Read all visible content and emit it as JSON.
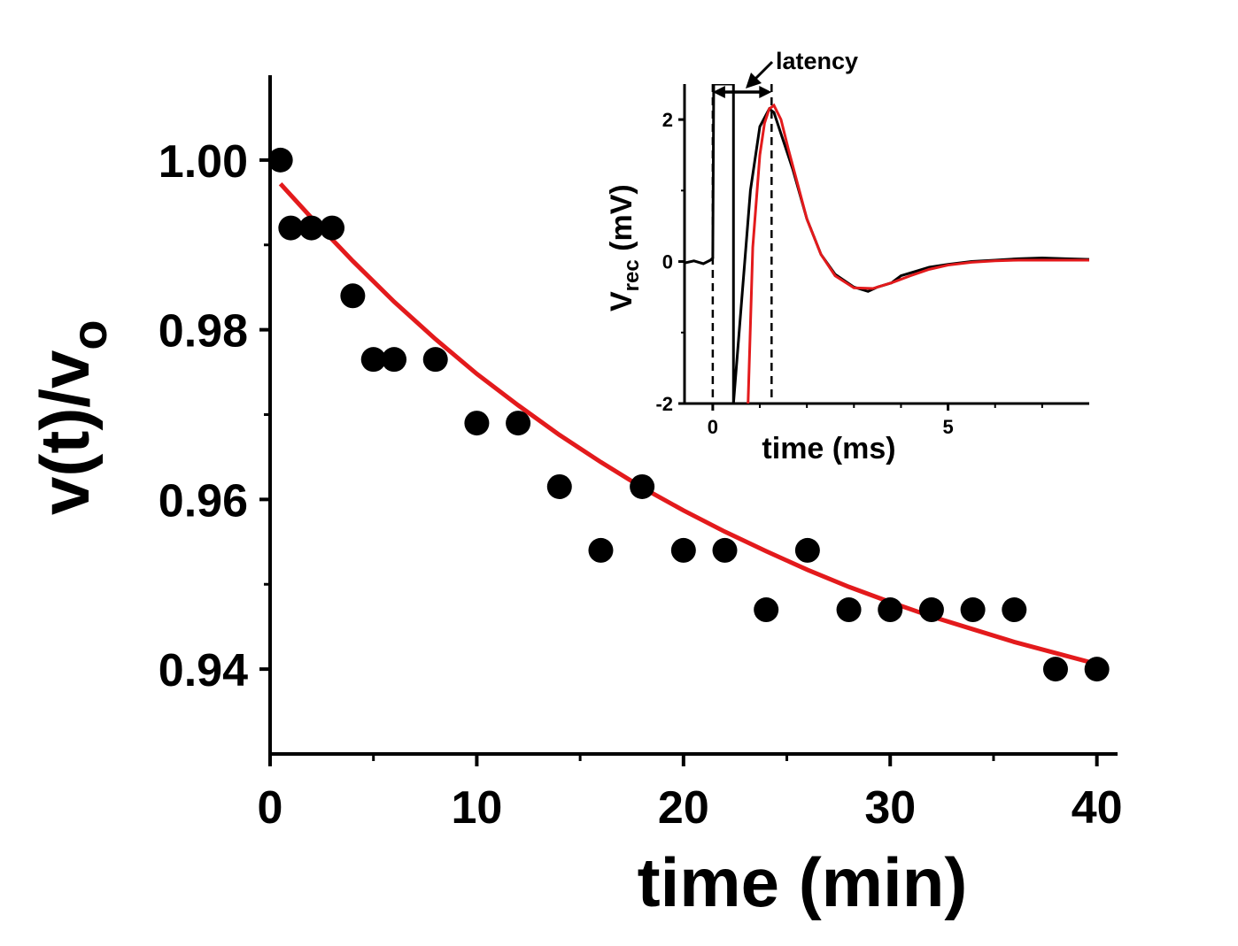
{
  "chart_data": [
    {
      "type": "scatter",
      "xlabel": "time (min)",
      "ylabel": "v(t)/v",
      "ylabel_subscript": "o",
      "xlim": [
        0,
        41
      ],
      "ylim": [
        0.93,
        1.01
      ],
      "xticks": [
        0,
        10,
        20,
        30,
        40
      ],
      "xtick_labels": [
        "0",
        "10",
        "20",
        "30",
        "40"
      ],
      "xminor": [
        5,
        15,
        25,
        35
      ],
      "yticks": [
        0.94,
        0.96,
        0.98,
        1.0
      ],
      "ytick_labels": [
        "0.94",
        "0.96",
        "0.98",
        "1.00"
      ],
      "yminor": [
        0.95,
        0.97,
        0.99
      ],
      "series": [
        {
          "name": "data",
          "color": "#000000",
          "x": [
            0.5,
            1,
            2,
            3,
            4,
            5,
            6,
            8,
            10,
            12,
            14,
            16,
            18,
            20,
            22,
            24,
            26,
            28,
            30,
            32,
            34,
            36,
            38,
            40
          ],
          "y": [
            1.0,
            0.992,
            0.992,
            0.992,
            0.984,
            0.9765,
            0.9765,
            0.9765,
            0.969,
            0.969,
            0.9615,
            0.954,
            0.9615,
            0.954,
            0.954,
            0.947,
            0.954,
            0.947,
            0.947,
            0.947,
            0.947,
            0.947,
            0.94,
            0.94
          ]
        },
        {
          "name": "fit",
          "type": "line",
          "color": "#e31a1c",
          "x": [
            0.5,
            2,
            4,
            6,
            8,
            10,
            12,
            14,
            16,
            18,
            20,
            22,
            24,
            26,
            28,
            30,
            32,
            34,
            36,
            38,
            40
          ],
          "y": [
            0.9972,
            0.9932,
            0.9881,
            0.9833,
            0.9789,
            0.9748,
            0.9711,
            0.9676,
            0.9644,
            0.9614,
            0.9587,
            0.9562,
            0.9539,
            0.9517,
            0.9497,
            0.9479,
            0.9462,
            0.9447,
            0.9432,
            0.9419,
            0.9406
          ]
        }
      ]
    },
    {
      "type": "line",
      "xlabel": "time (ms)",
      "ylabel": "V",
      "ylabel_subscript": "rec",
      "ylabel_suffix": " (mV)",
      "xlim": [
        -0.6,
        8
      ],
      "ylim": [
        -2,
        2.5
      ],
      "xticks": [
        0,
        5
      ],
      "xtick_labels": [
        "0",
        "5"
      ],
      "xminor": [
        1,
        2,
        3,
        4,
        6,
        7
      ],
      "yticks": [
        -2,
        0,
        2
      ],
      "ytick_labels": [
        "-2",
        "0",
        "2"
      ],
      "yminor": [
        -1,
        1
      ],
      "annotation": "latency",
      "markers": [
        0,
        1.25
      ],
      "series": [
        {
          "name": "recorded",
          "color": "#000000",
          "x": [
            -0.6,
            -0.4,
            -0.2,
            -0.05,
            0.0,
            0.02,
            0.3,
            0.32,
            0.38,
            0.44,
            0.44,
            0.8,
            1.0,
            1.2,
            1.3,
            1.5,
            1.7,
            2.0,
            2.3,
            2.6,
            3.0,
            3.3,
            3.5,
            3.8,
            4.0,
            4.3,
            4.6,
            5.0,
            5.5,
            6.0,
            6.5,
            7.0,
            7.5,
            8.0
          ],
          "y": [
            -0.02,
            0.01,
            -0.03,
            0.02,
            0.05,
            2.5,
            2.5,
            2.5,
            2.5,
            2.5,
            -2.0,
            1.0,
            1.9,
            2.15,
            2.1,
            1.7,
            1.3,
            0.6,
            0.1,
            -0.18,
            -0.36,
            -0.42,
            -0.36,
            -0.3,
            -0.2,
            -0.14,
            -0.08,
            -0.04,
            0.0,
            0.02,
            0.04,
            0.05,
            0.04,
            0.03
          ]
        },
        {
          "name": "fit",
          "color": "#e31a1c",
          "x": [
            0.75,
            0.85,
            1.0,
            1.1,
            1.2,
            1.3,
            1.45,
            1.6,
            1.8,
            2.0,
            2.3,
            2.6,
            3.0,
            3.4,
            3.8,
            4.2,
            4.6,
            5.0,
            5.5,
            6.0,
            6.5,
            7.0,
            7.5,
            8.0
          ],
          "y": [
            -2.0,
            0.2,
            1.5,
            1.95,
            2.15,
            2.2,
            2.0,
            1.6,
            1.1,
            0.6,
            0.1,
            -0.2,
            -0.37,
            -0.38,
            -0.3,
            -0.2,
            -0.11,
            -0.05,
            -0.01,
            0.01,
            0.02,
            0.02,
            0.02,
            0.02
          ]
        }
      ]
    }
  ]
}
